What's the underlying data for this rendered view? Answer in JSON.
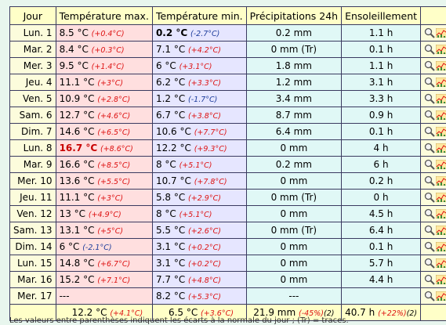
{
  "headers": {
    "day": "Jour",
    "tmax": "Température max.",
    "tmin": "Température min.",
    "precip": "Précipitations 24h",
    "sun": "Ensoleillement"
  },
  "rows": [
    {
      "day": "Lun. 1",
      "tmax": "8.5 °C",
      "tmax_anom": "(+0.4°C)",
      "tmin": "0.2 °C",
      "tmin_anom": "(-2.7°C)",
      "precip": "0.2 mm",
      "sun": "1.1 h"
    },
    {
      "day": "Mar. 2",
      "tmax": "8.4 °C",
      "tmax_anom": "(+0.3°C)",
      "tmin": "7.1 °C",
      "tmin_anom": "(+4.2°C)",
      "precip": "0 mm (Tr)",
      "sun": "0.1 h"
    },
    {
      "day": "Mer. 3",
      "tmax": "9.5 °C",
      "tmax_anom": "(+1.4°C)",
      "tmin": "6 °C",
      "tmin_anom": "(+3.1°C)",
      "precip": "1.8 mm",
      "sun": "1.1 h"
    },
    {
      "day": "Jeu. 4",
      "tmax": "11.1 °C",
      "tmax_anom": "(+3°C)",
      "tmin": "6.2 °C",
      "tmin_anom": "(+3.3°C)",
      "precip": "1.2 mm",
      "sun": "3.1 h"
    },
    {
      "day": "Ven. 5",
      "tmax": "10.9 °C",
      "tmax_anom": "(+2.8°C)",
      "tmin": "1.2 °C",
      "tmin_anom": "(-1.7°C)",
      "precip": "3.4 mm",
      "sun": "3.3 h"
    },
    {
      "day": "Sam. 6",
      "tmax": "12.7 °C",
      "tmax_anom": "(+4.6°C)",
      "tmin": "6.7 °C",
      "tmin_anom": "(+3.8°C)",
      "precip": "8.7 mm",
      "sun": "0.9 h"
    },
    {
      "day": "Dim. 7",
      "tmax": "14.6 °C",
      "tmax_anom": "(+6.5°C)",
      "tmin": "10.6 °C",
      "tmin_anom": "(+7.7°C)",
      "precip": "6.4 mm",
      "sun": "0.1 h"
    },
    {
      "day": "Lun. 8",
      "tmax": "16.7 °C",
      "tmax_anom": "(+8.6°C)",
      "tmin": "12.2 °C",
      "tmin_anom": "(+9.3°C)",
      "precip": "0 mm",
      "sun": "4 h"
    },
    {
      "day": "Mar. 9",
      "tmax": "16.6 °C",
      "tmax_anom": "(+8.5°C)",
      "tmin": "8 °C",
      "tmin_anom": "(+5.1°C)",
      "precip": "0.2 mm",
      "sun": "6 h"
    },
    {
      "day": "Mer. 10",
      "tmax": "13.6 °C",
      "tmax_anom": "(+5.5°C)",
      "tmin": "10.7 °C",
      "tmin_anom": "(+7.8°C)",
      "precip": "0 mm",
      "sun": "0.2 h"
    },
    {
      "day": "Jeu. 11",
      "tmax": "11.1 °C",
      "tmax_anom": "(+3°C)",
      "tmin": "5.8 °C",
      "tmin_anom": "(+2.9°C)",
      "precip": "0 mm (Tr)",
      "sun": "0 h"
    },
    {
      "day": "Ven. 12",
      "tmax": "13 °C",
      "tmax_anom": "(+4.9°C)",
      "tmin": "8 °C",
      "tmin_anom": "(+5.1°C)",
      "precip": "0 mm",
      "sun": "4.5 h"
    },
    {
      "day": "Sam. 13",
      "tmax": "13.1 °C",
      "tmax_anom": "(+5°C)",
      "tmin": "5.5 °C",
      "tmin_anom": "(+2.6°C)",
      "precip": "0 mm (Tr)",
      "sun": "6.4 h"
    },
    {
      "day": "Dim. 14",
      "tmax": "6 °C",
      "tmax_anom": "(-2.1°C)",
      "tmin": "3.1 °C",
      "tmin_anom": "(+0.2°C)",
      "precip": "0 mm",
      "sun": "0.1 h"
    },
    {
      "day": "Lun. 15",
      "tmax": "14.8 °C",
      "tmax_anom": "(+6.7°C)",
      "tmin": "3.1 °C",
      "tmin_anom": "(+0.2°C)",
      "precip": "0 mm",
      "sun": "5.7 h"
    },
    {
      "day": "Mar. 16",
      "tmax": "15.2 °C",
      "tmax_anom": "(+7.1°C)",
      "tmin": "7.7 °C",
      "tmin_anom": "(+4.8°C)",
      "precip": "0 mm",
      "sun": "4.4 h"
    },
    {
      "day": "Mer. 17",
      "tmax": "---",
      "tmax_anom": "",
      "tmin": "8.2 °C",
      "tmin_anom": "(+5.3°C)",
      "precip": "---",
      "sun": ""
    }
  ],
  "totals": {
    "tmax": "12.2 °C",
    "tmax_anom": "(+4.1°C)",
    "tmin": "6.5 °C",
    "tmin_anom": "(+3.6°C)",
    "precip": "21.9 mm",
    "precip_anom": "(-45%)",
    "precip_note": "(2)",
    "sun": "40.7 h",
    "sun_anom": "(+22%)",
    "sun_note": "(2)"
  },
  "highlights": {
    "min_tmin_row": 0,
    "max_tmax_row": 7
  },
  "icons": {
    "row_icon_1": "magnifier-icon",
    "row_icon_2": "mini-chart-icon"
  },
  "colors": {
    "positive_anomaly": "#d11111",
    "negative_anomaly": "#1a3a9a",
    "header_bg": "#ffffc8"
  },
  "footer": "Les valeurs entre parenthèses indiquent les écarts à la normale du jour ; (Tr) = traces."
}
